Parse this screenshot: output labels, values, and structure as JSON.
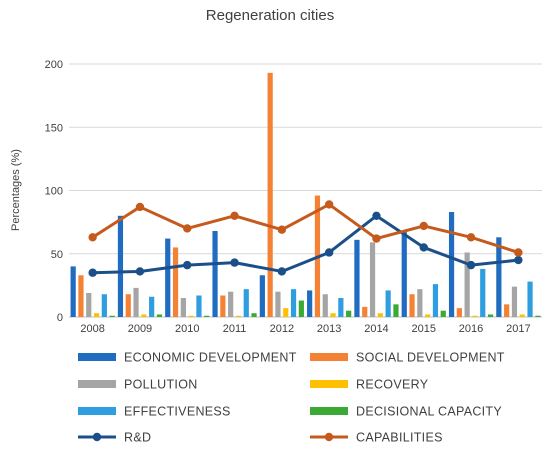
{
  "chart_data": {
    "type": "bar",
    "title": "Regeneration cities",
    "ylabel": "Percentages (%)",
    "xlabel": "",
    "ylim": [
      0,
      200
    ],
    "yticks": [
      0,
      50,
      100,
      150,
      200
    ],
    "grid": true,
    "legend_position": "bottom",
    "categories": [
      "2008",
      "2009",
      "2010",
      "2011",
      "2012",
      "2013",
      "2014",
      "2015",
      "2016",
      "2017"
    ],
    "series": [
      {
        "name": "ECONOMIC DEVELOPMENT",
        "kind": "bar",
        "color": "#1f6cc1",
        "values": [
          40,
          80,
          62,
          68,
          33,
          21,
          61,
          68,
          83,
          63
        ]
      },
      {
        "name": "SOCIAL DEVELOPMENT",
        "kind": "bar",
        "color": "#f58234",
        "values": [
          33,
          18,
          55,
          17,
          193,
          96,
          8,
          18,
          7,
          10
        ]
      },
      {
        "name": "POLLUTION",
        "kind": "bar",
        "color": "#a5a5a5",
        "values": [
          19,
          23,
          15,
          20,
          20,
          18,
          59,
          22,
          51,
          24
        ]
      },
      {
        "name": "RECOVERY",
        "kind": "bar",
        "color": "#ffc000",
        "values": [
          3,
          2,
          1,
          1,
          7,
          3,
          3,
          2,
          1,
          2
        ]
      },
      {
        "name": "EFFECTIVENESS",
        "kind": "bar",
        "color": "#2e9ee0",
        "values": [
          18,
          16,
          17,
          22,
          22,
          15,
          21,
          26,
          38,
          28
        ]
      },
      {
        "name": "DECISIONAL CAPACITY",
        "kind": "bar",
        "color": "#3aaa35",
        "values": [
          1,
          2,
          1,
          3,
          13,
          5,
          10,
          5,
          2,
          1
        ]
      },
      {
        "name": "R&D",
        "kind": "line",
        "color": "#1b4f8a",
        "values": [
          35,
          36,
          41,
          43,
          36,
          51,
          80,
          55,
          41,
          45
        ]
      },
      {
        "name": "CAPABILITIES",
        "kind": "line",
        "color": "#c55a1c",
        "values": [
          63,
          87,
          70,
          80,
          69,
          89,
          62,
          72,
          63,
          51
        ]
      }
    ]
  }
}
